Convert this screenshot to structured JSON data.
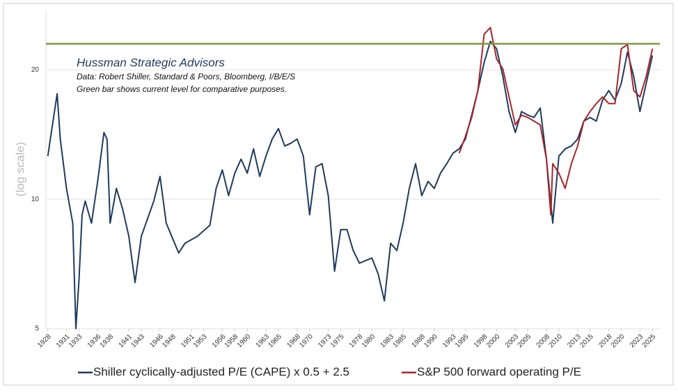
{
  "chart_data": {
    "type": "line",
    "annotations": [
      "Hussman Strategic Advisors",
      "Data: Robert Shiller, Standard & Poors, Bloomberg, I/B/E/S",
      "Green bar shows current level for comparative purposes."
    ],
    "y_label": "(log scale)",
    "log_scale": true,
    "grid": true,
    "ylim": [
      5,
      27.5
    ],
    "yticks": [
      5,
      10,
      20
    ],
    "xlim": [
      1927.7,
      2026.2
    ],
    "xticks": [
      1928,
      1931,
      1933,
      1936,
      1938,
      1941,
      1943,
      1946,
      1948,
      1951,
      1953,
      1956,
      1958,
      1960,
      1963,
      1965,
      1968,
      1970,
      1973,
      1975,
      1978,
      1980,
      1983,
      1985,
      1988,
      1990,
      1993,
      1995,
      1998,
      2000,
      2003,
      2005,
      2008,
      2010,
      2013,
      2015,
      2018,
      2020,
      2023,
      2025
    ],
    "reference_line": {
      "value": 23,
      "color": "#7a9a3a"
    },
    "series": [
      {
        "name": "Shiller cyclically-adjusted P/E (CAPE) x 0.5 + 2.5",
        "color": "#1f3a5c",
        "x": [
          1928,
          1929.5,
          1930,
          1931,
          1932,
          1932.5,
          1933,
          1933.5,
          1934,
          1935,
          1936,
          1937,
          1937.5,
          1938,
          1939,
          1940,
          1941,
          1942,
          1943,
          1945,
          1946,
          1947,
          1949,
          1950,
          1952,
          1954,
          1955,
          1956,
          1957,
          1958,
          1959,
          1960,
          1961,
          1962,
          1963,
          1964,
          1965,
          1966,
          1967,
          1968,
          1969,
          1970,
          1971,
          1972,
          1973,
          1974,
          1975,
          1976,
          1977,
          1978,
          1979,
          1980,
          1981,
          1982,
          1983,
          1984,
          1985,
          1986,
          1987,
          1988,
          1989,
          1990,
          1991,
          1992,
          1993,
          1994,
          1995,
          1996,
          1997,
          1998,
          1999,
          2000,
          2001,
          2002,
          2003,
          2004,
          2005,
          2006,
          2007,
          2008,
          2009,
          2010,
          2011,
          2012,
          2013,
          2014,
          2015,
          2016,
          2017,
          2018,
          2019,
          2020,
          2021,
          2022,
          2023,
          2024,
          2025
        ],
        "values": [
          12.6,
          17.6,
          13.8,
          10.6,
          8.8,
          5.0,
          6.5,
          9.2,
          9.9,
          8.8,
          11.0,
          14.3,
          13.8,
          8.8,
          10.6,
          9.5,
          8.2,
          6.4,
          8.2,
          9.9,
          11.3,
          8.8,
          7.5,
          7.9,
          8.2,
          8.7,
          10.6,
          11.7,
          10.2,
          11.5,
          12.4,
          11.5,
          13.1,
          11.3,
          12.6,
          13.8,
          14.6,
          13.3,
          13.5,
          13.8,
          12.6,
          9.2,
          11.9,
          12.1,
          10.2,
          6.8,
          8.5,
          8.5,
          7.6,
          7.1,
          7.2,
          7.3,
          6.7,
          5.8,
          7.9,
          7.6,
          8.8,
          10.6,
          12.1,
          10.2,
          11.0,
          10.6,
          11.5,
          12.1,
          12.8,
          13.1,
          13.8,
          15.7,
          17.9,
          20.8,
          23.3,
          22.4,
          19.3,
          16.0,
          14.3,
          16.0,
          15.7,
          15.5,
          16.3,
          12.4,
          8.8,
          12.6,
          13.1,
          13.3,
          13.8,
          15.2,
          15.5,
          15.2,
          17.0,
          17.9,
          17.0,
          18.6,
          22.0,
          19.3,
          16.0,
          18.6,
          21.6
        ]
      },
      {
        "name": "S&P 500 forward operating P/E",
        "color": "#a4262c",
        "x": [
          1994,
          1995,
          1996,
          1997,
          1998,
          1999,
          2000,
          2001,
          2002,
          2003,
          2004,
          2005,
          2006,
          2007,
          2008,
          2008.7,
          2009,
          2010,
          2011,
          2012,
          2013,
          2014,
          2015,
          2016,
          2017,
          2018,
          2019,
          2020,
          2021,
          2022,
          2023,
          2024,
          2025
        ],
        "values": [
          12.8,
          14.0,
          15.5,
          17.9,
          24.2,
          25.1,
          21.2,
          20.1,
          17.3,
          14.9,
          15.7,
          15.5,
          15.2,
          14.9,
          12.4,
          9.2,
          12.1,
          11.5,
          10.6,
          12.1,
          13.3,
          15.2,
          16.0,
          16.7,
          17.3,
          16.7,
          16.7,
          22.4,
          22.9,
          17.9,
          17.3,
          19.3,
          22.4
        ]
      }
    ]
  }
}
